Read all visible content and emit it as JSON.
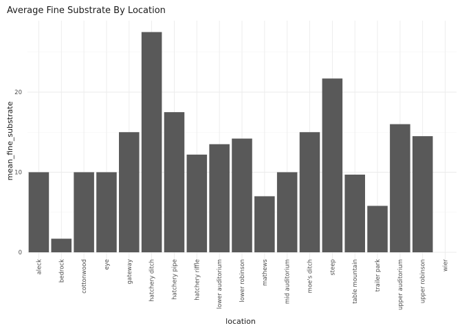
{
  "chart_data": {
    "type": "bar",
    "title": "Average Fine Substrate By Location",
    "xlabel": "location",
    "ylabel": "mean_fine_substrate",
    "categories": [
      "aleck",
      "bedrock",
      "cottonwood",
      "eye",
      "gateway",
      "hatchery ditch",
      "hatchery pipe",
      "hatchery riffle",
      "lower auditorium",
      "lower robinson",
      "mathews",
      "mid auditorium",
      "moe's ditch",
      "steep",
      "table mountain",
      "trailer park",
      "upper auditorium",
      "upper robinson",
      "wier"
    ],
    "values": [
      10,
      1.7,
      10,
      10,
      15,
      27.5,
      17.5,
      12.2,
      13.5,
      14.2,
      7,
      10,
      15,
      21.7,
      9.7,
      5.8,
      16,
      14.5,
      0
    ],
    "ylim": [
      0,
      29
    ],
    "yticks": [
      0,
      10,
      20
    ],
    "grid": true,
    "bar_color": "#595959"
  }
}
